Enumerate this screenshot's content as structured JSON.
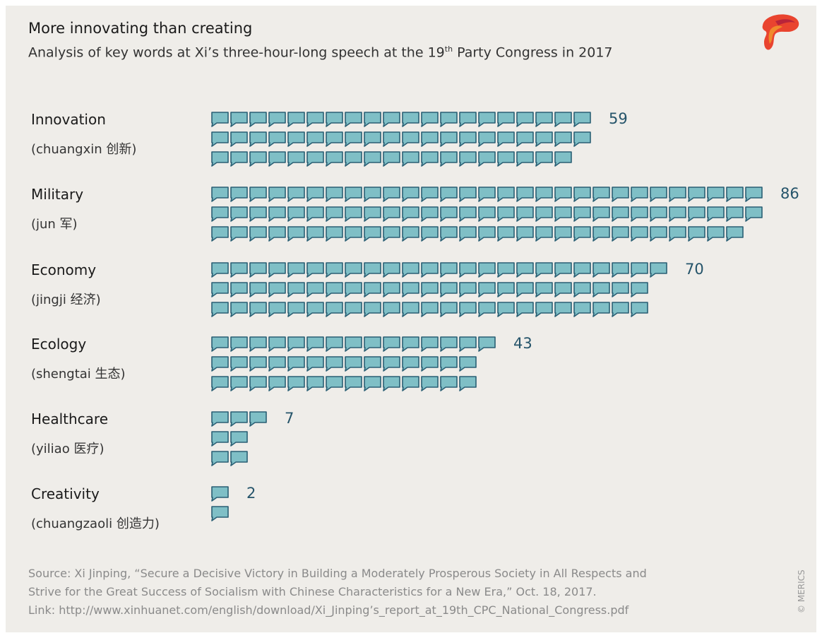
{
  "header": {
    "title": "More innovating than creating",
    "subtitle_before": "Analysis of key words at Xi’s three-hour-long speech at the 19",
    "subtitle_sup": "th",
    "subtitle_after": " Party Congress in 2017"
  },
  "logo_icon": "merics-logo-icon",
  "colors": {
    "background": "#efede9",
    "icon_fill": "#7fbfc6",
    "icon_stroke": "#2a5f74",
    "value_text": "#25546a"
  },
  "chart_data": {
    "type": "pictogram",
    "title": "More innovating than creating",
    "unit_icon": "speech-bubble-icon",
    "categories": [
      {
        "name": "Innovation",
        "chinese": "(chuangxin 创新)",
        "value": 59
      },
      {
        "name": "Military",
        "chinese": "(jun 军)",
        "value": 86
      },
      {
        "name": "Economy",
        "chinese": "(jingji 经济)",
        "value": 70
      },
      {
        "name": "Ecology",
        "chinese": "(shengtai 生态)",
        "value": 43
      },
      {
        "name": "Healthcare",
        "chinese": "(yiliao 医疗)",
        "value": 7
      },
      {
        "name": "Creativity",
        "chinese": "(chuangzaoli 创造力)",
        "value": 2
      }
    ],
    "values_label": [
      "59",
      "86",
      "70",
      "43",
      "7",
      "2"
    ]
  },
  "footer": {
    "source_line1": "Source: Xi Jinping, “Secure a Decisive Victory in Building a Moderately Prosperous Society in All Respects and",
    "source_line2": "Strive for the Great Success of Socialism with Chinese Characteristics for a New Era,” Oct. 18, 2017.",
    "source_line3": "Link: http://www.xinhuanet.com/english/download/Xi_Jinping’s_report_at_19th_CPC_National_Congress.pdf",
    "copyright": "© MERICS"
  }
}
